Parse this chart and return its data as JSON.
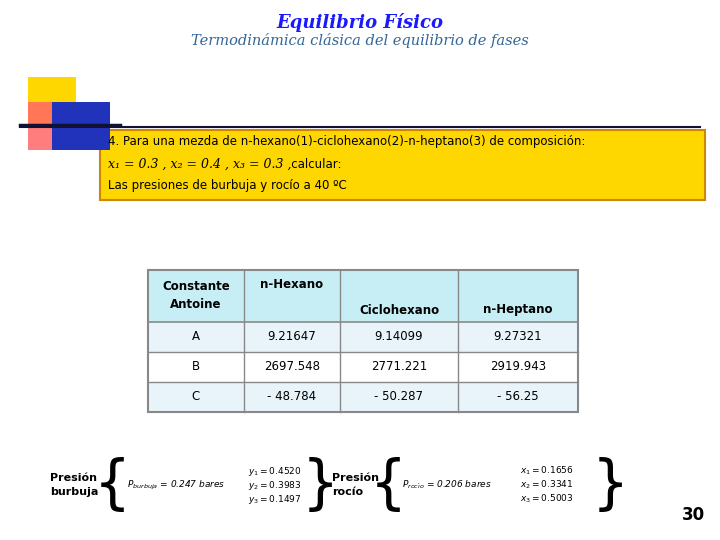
{
  "title1": "Equilibrio Físico",
  "title2": "Termodinámica clásica del equilibrio de fases",
  "title1_color": "#1a1aff",
  "title2_color": "#336699",
  "yellow_box_text1": "4. Para una mezda de n-hexano(1)-ciclohexano(2)-n-heptano(3) de composición:",
  "yellow_box_text2_italic": "x₁ = 0.3 , x₂ = 0.4 , x₃ = 0.3 ,",
  "yellow_box_text2_normal": "   calcular:",
  "yellow_box_text3": "Las presiones de burbuja y rocío a 40 ºC",
  "yellow_box_color": "#FFD700",
  "yellow_box_border": "#CC8800",
  "table_header_bg": "#C8EEF5",
  "table_border": "#888888",
  "table_rows": [
    [
      "A",
      "9.21647",
      "9.14099",
      "9.27321"
    ],
    [
      "B",
      "2697.548",
      "2771.221",
      "2919.943"
    ],
    [
      "C",
      "- 48.784",
      "- 50.287",
      "- 56.25"
    ]
  ],
  "page_number": "30",
  "bg_color": "#FFFFFF",
  "sq_yellow": "#FFD700",
  "sq_red": "#FF6666",
  "sq_blue": "#2233BB",
  "line_color": "#111133"
}
